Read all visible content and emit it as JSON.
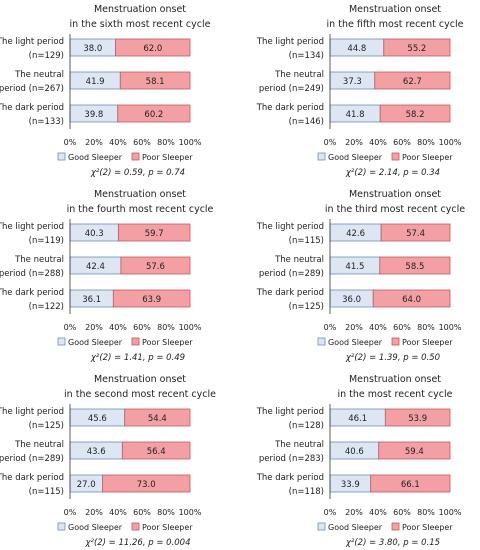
{
  "colors": {
    "good": "#dde6f2",
    "poor": "#f2a0a4",
    "good_border": "#6f8fb8",
    "poor_border": "#c4575c",
    "axis": "#333333"
  },
  "chart_data": [
    {
      "type": "bar",
      "stacked": true,
      "orientation": "horizontal",
      "title": [
        "Menstruation onset",
        "in the sixth most recent cycle"
      ],
      "categories": [
        [
          "The light period",
          "(n=129)"
        ],
        [
          "The neutral",
          "period (n=267)"
        ],
        [
          "The dark period",
          "(n=133)"
        ]
      ],
      "series": [
        {
          "name": "Good Sleeper",
          "values": [
            38.0,
            41.9,
            39.8
          ]
        },
        {
          "name": "Poor Sleeper",
          "values": [
            62.0,
            58.1,
            60.2
          ]
        }
      ],
      "xticks": [
        "0%",
        "20%",
        "40%",
        "60%",
        "80%",
        "100%"
      ],
      "xlim": [
        0,
        100
      ],
      "legend": [
        "Good Sleeper",
        "Poor Sleeper"
      ],
      "stat": "χ²(2) = 0.59, p = 0.74"
    },
    {
      "type": "bar",
      "stacked": true,
      "orientation": "horizontal",
      "title": [
        "Menstruation onset",
        "in the fifth most recent cycle"
      ],
      "categories": [
        [
          "The light period",
          "(n=134)"
        ],
        [
          "The neutral",
          "period (n=249)"
        ],
        [
          "The dark period",
          "(n=146)"
        ]
      ],
      "series": [
        {
          "name": "Good Sleeper",
          "values": [
            44.8,
            37.3,
            41.8
          ]
        },
        {
          "name": "Poor Sleeper",
          "values": [
            55.2,
            62.7,
            58.2
          ]
        }
      ],
      "xticks": [
        "0%",
        "20%",
        "40%",
        "60%",
        "80%",
        "100%"
      ],
      "xlim": [
        0,
        100
      ],
      "legend": [
        "Good Sleeper",
        "Poor Sleeper"
      ],
      "stat": "χ²(2) = 2.14, p = 0.34"
    },
    {
      "type": "bar",
      "stacked": true,
      "orientation": "horizontal",
      "title": [
        "Menstruation onset",
        "in the fourth most recent cycle"
      ],
      "categories": [
        [
          "The light period",
          "(n=119)"
        ],
        [
          "The neutral",
          "period (n=288)"
        ],
        [
          "The dark period",
          "(n=122)"
        ]
      ],
      "series": [
        {
          "name": "Good Sleeper",
          "values": [
            40.3,
            42.4,
            36.1
          ]
        },
        {
          "name": "Poor Sleeper",
          "values": [
            59.7,
            57.6,
            63.9
          ]
        }
      ],
      "xticks": [
        "0%",
        "20%",
        "40%",
        "60%",
        "80%",
        "100%"
      ],
      "xlim": [
        0,
        100
      ],
      "legend": [
        "Good Sleeper",
        "Poor Sleeper"
      ],
      "stat": "χ²(2) = 1.41, p = 0.49"
    },
    {
      "type": "bar",
      "stacked": true,
      "orientation": "horizontal",
      "title": [
        "Menstruation onset",
        "in the third most recent cycle"
      ],
      "categories": [
        [
          "The light period",
          "(n=115)"
        ],
        [
          "The neutral",
          "period (n=289)"
        ],
        [
          "The dark period",
          "(n=125)"
        ]
      ],
      "series": [
        {
          "name": "Good Sleeper",
          "values": [
            42.6,
            41.5,
            36.0
          ]
        },
        {
          "name": "Poor Sleeper",
          "values": [
            57.4,
            58.5,
            64.0
          ]
        }
      ],
      "xticks": [
        "0%",
        "20%",
        "40%",
        "60%",
        "80%",
        "100%"
      ],
      "xlim": [
        0,
        100
      ],
      "legend": [
        "Good Sleeper",
        "Poor Sleeper"
      ],
      "stat": "χ²(2) = 1.39, p = 0.50"
    },
    {
      "type": "bar",
      "stacked": true,
      "orientation": "horizontal",
      "title": [
        "Menstruation onset",
        "in the second most recent cycle"
      ],
      "categories": [
        [
          "The light period",
          "(n=125)"
        ],
        [
          "The neutral",
          "period (n=289)"
        ],
        [
          "The dark period",
          "(n=115)"
        ]
      ],
      "series": [
        {
          "name": "Good Sleeper",
          "values": [
            45.6,
            43.6,
            27.0
          ]
        },
        {
          "name": "Poor Sleeper",
          "values": [
            54.4,
            56.4,
            73.0
          ]
        }
      ],
      "xticks": [
        "0%",
        "20%",
        "40%",
        "60%",
        "80%",
        "100%"
      ],
      "xlim": [
        0,
        100
      ],
      "legend": [
        "Good Sleeper",
        "Poor Sleeper"
      ],
      "stat": "χ²(2) = 11.26, p = 0.004"
    },
    {
      "type": "bar",
      "stacked": true,
      "orientation": "horizontal",
      "title": [
        "Menstruation onset",
        "in the most recent cycle"
      ],
      "categories": [
        [
          "The light period",
          "(n=128)"
        ],
        [
          "The neutral",
          "period (n=283)"
        ],
        [
          "The dark period",
          "(n=118)"
        ]
      ],
      "series": [
        {
          "name": "Good Sleeper",
          "values": [
            46.1,
            40.6,
            33.9
          ]
        },
        {
          "name": "Poor Sleeper",
          "values": [
            53.9,
            59.4,
            66.1
          ]
        }
      ],
      "xticks": [
        "0%",
        "20%",
        "40%",
        "60%",
        "80%",
        "100%"
      ],
      "xlim": [
        0,
        100
      ],
      "legend": [
        "Good Sleeper",
        "Poor Sleeper"
      ],
      "stat": "χ²(2) = 3.80, p = 0.15"
    }
  ]
}
